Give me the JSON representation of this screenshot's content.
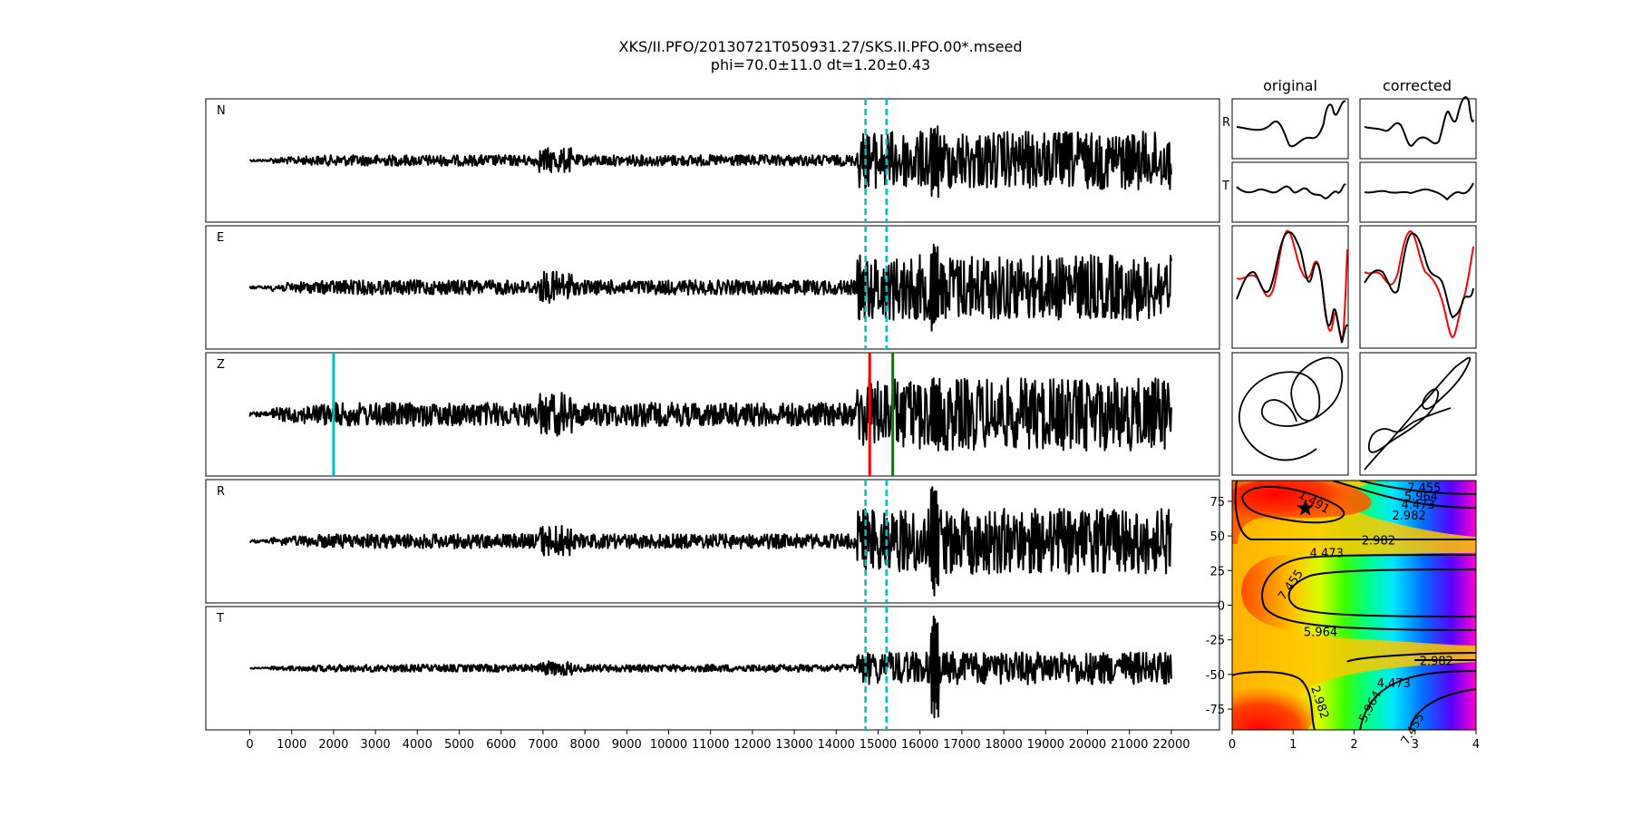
{
  "figure": {
    "title_line1": "XKS/II.PFO/20130721T050931.27/SKS.II.PFO.00*.mseed",
    "title_line2": "phi=70.0±11.0 dt=1.20±0.43",
    "col_original": "original",
    "col_corrected": "corrected",
    "row_label_R": "R",
    "row_label_T": "T",
    "colors": {
      "trace": "#000000",
      "window_marker": "#00bfbf",
      "pick_red": "#ff0000",
      "pick_green": "#008000",
      "pick_cyan": "#00bfbf",
      "rotated_trace": "#ff0000",
      "star": "#000000"
    }
  },
  "chart_data": [
    {
      "type": "line",
      "panels": [
        "N",
        "E",
        "Z",
        "R",
        "T"
      ],
      "x_ticks": [
        "0",
        "1000",
        "2000",
        "3000",
        "4000",
        "5000",
        "6000",
        "7000",
        "8000",
        "9000",
        "10000",
        "11000",
        "12000",
        "13000",
        "14000",
        "15000",
        "16000",
        "17000",
        "18000",
        "19000",
        "20000",
        "21000",
        "22000"
      ],
      "xlim": [
        -1050,
        23150
      ],
      "trace_x_range": [
        0,
        22000
      ],
      "analysis_window": [
        14700,
        15200
      ],
      "picks": [
        {
          "x": 2000,
          "color": "#00bfbf",
          "panel": "Z"
        },
        {
          "x": 14800,
          "color": "#ff0000",
          "panel": "Z"
        },
        {
          "x": 15350,
          "color": "#008000",
          "panel": "Z"
        }
      ]
    },
    {
      "type": "heatmap",
      "xlim": [
        0,
        4
      ],
      "ylim": [
        -90,
        90
      ],
      "x_ticks": [
        "0",
        "1",
        "2",
        "3",
        "4"
      ],
      "y_ticks": [
        "-75",
        "-50",
        "-25",
        "0",
        "25",
        "50",
        "75"
      ],
      "colormap": "gist_rainbow (red = low, magenta = high)",
      "contour_levels": [
        "1.491",
        "2.982",
        "4.473",
        "5.964",
        "7.455"
      ],
      "best_fit": {
        "dt": 1.2,
        "phi": 70.0
      }
    }
  ]
}
